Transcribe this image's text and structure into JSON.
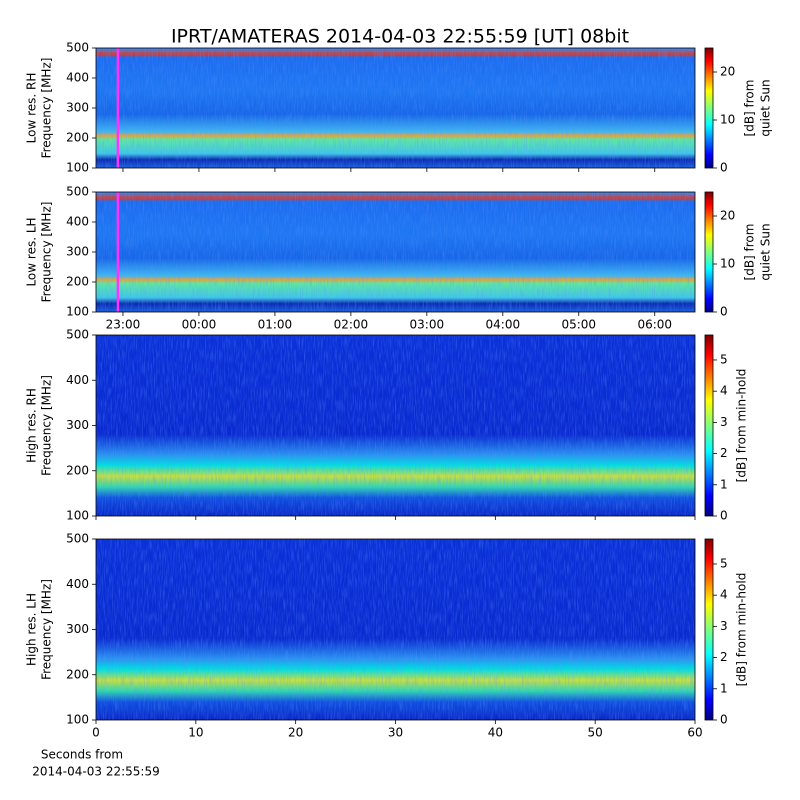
{
  "chart_data": [
    {
      "type": "heatmap",
      "title": "IPRT/AMATERAS 2014-04-03 22:55:59 [UT]   08bit",
      "ylabel": [
        "Low res. RH",
        "Frequency [MHz]"
      ],
      "ylim": [
        100,
        500
      ],
      "yticks": [
        100,
        200,
        300,
        400,
        500
      ],
      "xlim": [
        22.645,
        30.53
      ],
      "xticks": [
        {
          "value": 23,
          "label": "23:00"
        },
        {
          "value": 24,
          "label": "00:00"
        },
        {
          "value": 25,
          "label": "01:00"
        },
        {
          "value": 26,
          "label": "02:00"
        },
        {
          "value": 27,
          "label": "03:00"
        },
        {
          "value": 28,
          "label": "04:00"
        },
        {
          "value": 29,
          "label": "05:00"
        },
        {
          "value": 30,
          "label": "06:00"
        }
      ],
      "show_xtick_labels": false,
      "marker_x": 22.933,
      "marker_color": "#ff33ff",
      "colorbar_label": [
        "[dB] from",
        "quiet Sun"
      ],
      "clim": [
        0,
        25
      ],
      "cticks": [
        0,
        10,
        20
      ]
    },
    {
      "type": "heatmap",
      "ylabel": [
        "Low res. LH",
        "Frequency [MHz]"
      ],
      "ylim": [
        100,
        500
      ],
      "yticks": [
        100,
        200,
        300,
        400,
        500
      ],
      "xlim": [
        22.645,
        30.53
      ],
      "xticks": [
        {
          "value": 23,
          "label": "23:00"
        },
        {
          "value": 24,
          "label": "00:00"
        },
        {
          "value": 25,
          "label": "01:00"
        },
        {
          "value": 26,
          "label": "02:00"
        },
        {
          "value": 27,
          "label": "03:00"
        },
        {
          "value": 28,
          "label": "04:00"
        },
        {
          "value": 29,
          "label": "05:00"
        },
        {
          "value": 30,
          "label": "06:00"
        }
      ],
      "show_xtick_labels": true,
      "marker_x": 22.933,
      "marker_color": "#ff33ff",
      "colorbar_label": [
        "[dB] from",
        "quiet Sun"
      ],
      "clim": [
        0,
        25
      ],
      "cticks": [
        0,
        10,
        20
      ]
    },
    {
      "type": "heatmap",
      "ylabel": [
        "High res. RH",
        "Frequency [MHz]"
      ],
      "ylim": [
        100,
        500
      ],
      "yticks": [
        100,
        200,
        300,
        400,
        500
      ],
      "xlim": [
        0,
        60
      ],
      "xticks": [
        0,
        10,
        20,
        30,
        40,
        50,
        60
      ],
      "show_xtick_labels": false,
      "colorbar_label": [
        "[dB] from min-hold"
      ],
      "clim": [
        0,
        5.8
      ],
      "cticks": [
        0,
        1,
        2,
        3,
        4,
        5
      ]
    },
    {
      "type": "heatmap",
      "ylabel": [
        "High res. LH",
        "Frequency [MHz]"
      ],
      "ylim": [
        100,
        500
      ],
      "yticks": [
        100,
        200,
        300,
        400,
        500
      ],
      "xlim": [
        0,
        60
      ],
      "xticks": [
        0,
        10,
        20,
        30,
        40,
        50,
        60
      ],
      "show_xtick_labels": true,
      "xlabel": [
        "Seconds from",
        "2014-04-03 22:55:59"
      ],
      "colorbar_label": [
        "[dB] from min-hold"
      ],
      "clim": [
        0,
        5.8
      ],
      "cticks": [
        0,
        1,
        2,
        3,
        4,
        5
      ]
    }
  ]
}
